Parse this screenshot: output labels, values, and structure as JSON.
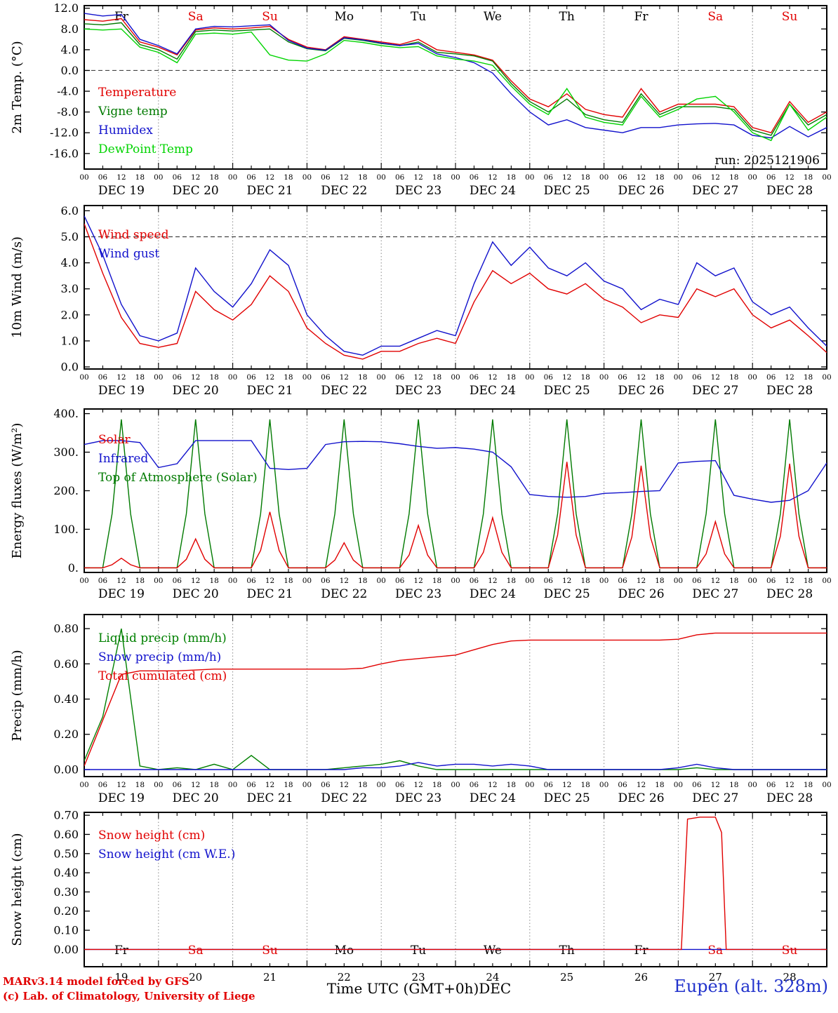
{
  "hour_ticks": [
    "00",
    "06",
    "12",
    "18"
  ],
  "days": [
    {
      "dow": "Fr",
      "dow_color": "#000000",
      "date": "DEC 19",
      "num": "19"
    },
    {
      "dow": "Sa",
      "dow_color": "#e10000",
      "date": "DEC 20",
      "num": "20"
    },
    {
      "dow": "Su",
      "dow_color": "#e10000",
      "date": "DEC 21",
      "num": "21"
    },
    {
      "dow": "Mo",
      "dow_color": "#000000",
      "date": "DEC 22",
      "num": "22"
    },
    {
      "dow": "Tu",
      "dow_color": "#000000",
      "date": "DEC 23",
      "num": "23"
    },
    {
      "dow": "We",
      "dow_color": "#000000",
      "date": "DEC 24",
      "num": "24"
    },
    {
      "dow": "Th",
      "dow_color": "#000000",
      "date": "DEC 25",
      "num": "25"
    },
    {
      "dow": "Fr",
      "dow_color": "#000000",
      "date": "DEC 26",
      "num": "26"
    },
    {
      "dow": "Sa",
      "dow_color": "#e10000",
      "date": "DEC 27",
      "num": "27"
    },
    {
      "dow": "Su",
      "dow_color": "#e10000",
      "date": "DEC 28",
      "num": "28"
    }
  ],
  "footer": {
    "model_credit": "MARv3.14 model forced by GFS",
    "lab_credit": "(c) Lab. of Climatology, University of Liege",
    "xaxis_title": "Time UTC (GMT+0h)DEC",
    "station": "Eupen (alt. 328m)"
  },
  "chart_data": [
    {
      "type": "line",
      "ylabel": "2m Temp. (°C)",
      "ylim": [
        -19,
        12.5
      ],
      "x_unit": "hours_from_dec19_00",
      "x_range": [
        0,
        240
      ],
      "yticks": [
        {
          "v": 12,
          "label": "12.0"
        },
        {
          "v": 8,
          "label": "8.0"
        },
        {
          "v": 4,
          "label": "4.0"
        },
        {
          "v": 0,
          "label": "0.0"
        },
        {
          "v": -4,
          "label": "-4.0"
        },
        {
          "v": -8,
          "label": "-8.0"
        },
        {
          "v": -12,
          "label": "-12.0"
        },
        {
          "v": -16,
          "label": "-16.0"
        }
      ],
      "hlines": [
        0
      ],
      "annotation": "run: 2025121906",
      "legend": [
        {
          "label": "Temperature",
          "color": "#e10000"
        },
        {
          "label": "Vigne temp",
          "color": "#007a00"
        },
        {
          "label": "Humidex",
          "color": "#1111cc"
        },
        {
          "label": "DewPoint Temp",
          "color": "#00d400"
        }
      ],
      "series": [
        {
          "name": "Temperature",
          "color": "#e10000",
          "x_step": 6,
          "values": [
            9.8,
            9.5,
            10.0,
            5.5,
            4.5,
            3.0,
            7.8,
            8.2,
            8.0,
            8.2,
            8.5,
            6.0,
            4.5,
            4.0,
            6.5,
            6.0,
            5.5,
            5.0,
            6.0,
            4.0,
            3.5,
            3.0,
            2.0,
            -2.0,
            -5.5,
            -7.0,
            -4.5,
            -7.5,
            -8.5,
            -9.0,
            -3.5,
            -8.0,
            -6.5,
            -6.5,
            -6.5,
            -7.0,
            -11.0,
            -12.0,
            -6.0,
            -10.0,
            -8.0
          ]
        },
        {
          "name": "Vigne temp",
          "color": "#007a00",
          "x_step": 6,
          "values": [
            9.0,
            8.8,
            9.2,
            5.0,
            4.0,
            2.2,
            7.5,
            7.8,
            7.6,
            7.8,
            8.0,
            5.5,
            4.2,
            3.8,
            6.2,
            5.8,
            5.2,
            4.8,
            5.5,
            3.5,
            3.2,
            2.8,
            1.8,
            -2.5,
            -6.0,
            -8.0,
            -5.5,
            -8.5,
            -9.5,
            -10.0,
            -4.5,
            -8.5,
            -7.0,
            -7.0,
            -7.0,
            -7.5,
            -11.5,
            -12.5,
            -6.5,
            -10.5,
            -8.5
          ]
        },
        {
          "name": "Humidex",
          "color": "#1111cc",
          "x_step": 6,
          "values": [
            11.0,
            10.5,
            10.8,
            6.0,
            4.8,
            3.2,
            8.0,
            8.5,
            8.4,
            8.6,
            8.8,
            5.8,
            4.3,
            3.9,
            6.3,
            5.9,
            5.3,
            4.8,
            5.2,
            3.2,
            2.5,
            1.5,
            -0.5,
            -4.5,
            -8.0,
            -10.5,
            -9.5,
            -11.0,
            -11.5,
            -12.0,
            -11.0,
            -11.0,
            -10.5,
            -10.3,
            -10.2,
            -10.5,
            -12.5,
            -13.0,
            -10.8,
            -12.8,
            -11.0
          ]
        },
        {
          "name": "DewPoint Temp",
          "color": "#00d400",
          "x_step": 6,
          "values": [
            8.0,
            7.8,
            8.0,
            4.5,
            3.5,
            1.5,
            7.0,
            7.2,
            7.0,
            7.4,
            3.0,
            2.0,
            1.8,
            3.2,
            5.8,
            5.4,
            4.8,
            4.4,
            4.6,
            2.8,
            2.2,
            1.8,
            1.0,
            -3.0,
            -6.5,
            -8.5,
            -3.5,
            -9.0,
            -10.0,
            -10.5,
            -5.0,
            -9.0,
            -7.5,
            -5.5,
            -5.0,
            -8.0,
            -12.0,
            -13.5,
            -6.5,
            -11.5,
            -9.0
          ]
        }
      ]
    },
    {
      "type": "line",
      "ylabel": "10m Wind (m/s)",
      "ylim": [
        -0.08,
        6.2
      ],
      "x_range": [
        0,
        240
      ],
      "yticks": [
        {
          "v": 6,
          "label": "6.0"
        },
        {
          "v": 5,
          "label": "5.0"
        },
        {
          "v": 4,
          "label": "4.0"
        },
        {
          "v": 3,
          "label": "3.0"
        },
        {
          "v": 2,
          "label": "2.0"
        },
        {
          "v": 1,
          "label": "1.0"
        },
        {
          "v": 0,
          "label": "0.0"
        }
      ],
      "hlines": [
        5
      ],
      "legend": [
        {
          "label": "Wind speed",
          "color": "#e10000"
        },
        {
          "label": "Wind gust",
          "color": "#1111cc"
        }
      ],
      "series": [
        {
          "name": "Wind gust",
          "color": "#1111cc",
          "x_step": 6,
          "values": [
            5.8,
            4.3,
            2.4,
            1.2,
            1.0,
            1.3,
            3.8,
            2.9,
            2.3,
            3.2,
            4.5,
            3.9,
            2.0,
            1.2,
            0.6,
            0.45,
            0.8,
            0.8,
            1.1,
            1.4,
            1.2,
            3.2,
            4.8,
            3.9,
            4.6,
            3.8,
            3.5,
            4.0,
            3.3,
            3.0,
            2.2,
            2.6,
            2.4,
            4.0,
            3.5,
            3.8,
            2.5,
            2.0,
            2.3,
            1.5,
            0.8
          ]
        },
        {
          "name": "Wind speed",
          "color": "#e10000",
          "x_step": 6,
          "values": [
            5.5,
            3.6,
            1.9,
            0.9,
            0.75,
            0.9,
            2.9,
            2.2,
            1.8,
            2.4,
            3.5,
            2.9,
            1.5,
            0.9,
            0.45,
            0.3,
            0.6,
            0.6,
            0.9,
            1.1,
            0.9,
            2.5,
            3.7,
            3.2,
            3.6,
            3.0,
            2.8,
            3.2,
            2.6,
            2.3,
            1.7,
            2.0,
            1.9,
            3.0,
            2.7,
            3.0,
            2.0,
            1.5,
            1.8,
            1.2,
            0.55
          ]
        }
      ]
    },
    {
      "type": "line",
      "ylabel": "Energy fluxes (W/m²)",
      "ylim": [
        -12,
        412
      ],
      "x_range": [
        0,
        240
      ],
      "yticks": [
        {
          "v": 400,
          "label": "400."
        },
        {
          "v": 300,
          "label": "300."
        },
        {
          "v": 200,
          "label": "200."
        },
        {
          "v": 100,
          "label": "100."
        },
        {
          "v": 0,
          "label": "0."
        }
      ],
      "hlines": [],
      "legend": [
        {
          "label": "Solar",
          "color": "#e10000"
        },
        {
          "label": "Infrared",
          "color": "#1111cc"
        },
        {
          "label": "Top of Atmosphere (Solar)",
          "color": "#007a00"
        }
      ],
      "series": [
        {
          "name": "Top of Atmosphere (Solar)",
          "color": "#007a00",
          "x_step": 3,
          "values": [
            0,
            0,
            0,
            140,
            385,
            140,
            0,
            0,
            0,
            0,
            0,
            140,
            385,
            140,
            0,
            0,
            0,
            0,
            0,
            140,
            385,
            140,
            0,
            0,
            0,
            0,
            0,
            140,
            385,
            140,
            0,
            0,
            0,
            0,
            0,
            140,
            385,
            140,
            0,
            0,
            0,
            0,
            0,
            140,
            385,
            140,
            0,
            0,
            0,
            0,
            0,
            140,
            385,
            140,
            0,
            0,
            0,
            0,
            0,
            140,
            385,
            140,
            0,
            0,
            0,
            0,
            0,
            140,
            385,
            140,
            0,
            0,
            0,
            0,
            0,
            140,
            385,
            140,
            0,
            0,
            0
          ]
        },
        {
          "name": "Infrared",
          "color": "#1111cc",
          "x_step": 6,
          "values": [
            320,
            330,
            330,
            325,
            260,
            270,
            330,
            330,
            330,
            330,
            258,
            255,
            258,
            320,
            327,
            328,
            327,
            322,
            315,
            310,
            312,
            308,
            300,
            262,
            190,
            185,
            183,
            185,
            193,
            195,
            198,
            200,
            272,
            276,
            278,
            188,
            178,
            170,
            175,
            200,
            272
          ]
        },
        {
          "name": "Solar",
          "color": "#e10000",
          "x_step": 3,
          "values": [
            0,
            0,
            0,
            8,
            25,
            8,
            0,
            0,
            0,
            0,
            0,
            22,
            75,
            22,
            0,
            0,
            0,
            0,
            0,
            45,
            145,
            45,
            0,
            0,
            0,
            0,
            0,
            20,
            65,
            20,
            0,
            0,
            0,
            0,
            0,
            33,
            110,
            33,
            0,
            0,
            0,
            0,
            0,
            40,
            130,
            40,
            0,
            0,
            0,
            0,
            0,
            85,
            275,
            85,
            0,
            0,
            0,
            0,
            0,
            80,
            265,
            80,
            0,
            0,
            0,
            0,
            0,
            36,
            120,
            36,
            0,
            0,
            0,
            0,
            0,
            82,
            270,
            82,
            0,
            0,
            0
          ]
        }
      ]
    },
    {
      "type": "line",
      "ylabel": "Precip (mm/h)",
      "ylim": [
        -0.04,
        0.88
      ],
      "x_range": [
        0,
        240
      ],
      "yticks": [
        {
          "v": 0.8,
          "label": "0.80"
        },
        {
          "v": 0.6,
          "label": "0.60"
        },
        {
          "v": 0.4,
          "label": "0.40"
        },
        {
          "v": 0.2,
          "label": "0.20"
        },
        {
          "v": 0.0,
          "label": "0.00"
        }
      ],
      "hlines": [],
      "legend": [
        {
          "label": "Liquid precip (mm/h)",
          "color": "#008000"
        },
        {
          "label": "Snow precip (mm/h)",
          "color": "#1111cc"
        },
        {
          "label": "Total cumulated (cm)",
          "color": "#e10000"
        }
      ],
      "series": [
        {
          "name": "Liquid precip",
          "color": "#008000",
          "x_step": 6,
          "values": [
            0.05,
            0.3,
            0.8,
            0.02,
            0.0,
            0.01,
            0.0,
            0.03,
            0.0,
            0.08,
            0.0,
            0.0,
            0.0,
            0.0,
            0.01,
            0.02,
            0.03,
            0.05,
            0.02,
            0.0,
            0.0,
            0.0,
            0.0,
            0.0,
            0.0,
            0.0,
            0.0,
            0.0,
            0.0,
            0.0,
            0.0,
            0.0,
            0.0,
            0.01,
            0.0,
            0.0,
            0.0,
            0.0,
            0.0,
            0.0,
            0.0
          ]
        },
        {
          "name": "Snow precip",
          "color": "#1111cc",
          "x_step": 6,
          "values": [
            0,
            0,
            0,
            0,
            0,
            0,
            0,
            0,
            0,
            0,
            0,
            0,
            0,
            0,
            0,
            0.01,
            0.01,
            0.02,
            0.04,
            0.02,
            0.03,
            0.03,
            0.02,
            0.03,
            0.02,
            0,
            0,
            0,
            0,
            0,
            0,
            0,
            0.01,
            0.03,
            0.01,
            0,
            0,
            0,
            0,
            0,
            0
          ]
        },
        {
          "name": "Total cumulated",
          "color": "#e10000",
          "x_step": 6,
          "values": [
            0.02,
            0.28,
            0.54,
            0.56,
            0.56,
            0.56,
            0.565,
            0.57,
            0.57,
            0.57,
            0.57,
            0.57,
            0.57,
            0.57,
            0.57,
            0.575,
            0.6,
            0.62,
            0.63,
            0.64,
            0.65,
            0.68,
            0.71,
            0.73,
            0.735,
            0.735,
            0.735,
            0.735,
            0.735,
            0.735,
            0.735,
            0.735,
            0.74,
            0.765,
            0.775,
            0.775,
            0.775,
            0.775,
            0.775,
            0.775,
            0.775
          ]
        }
      ]
    },
    {
      "type": "line",
      "ylabel": "Snow height (cm)",
      "ylim": [
        -0.09,
        0.715
      ],
      "x_range": [
        0,
        240
      ],
      "yticks": [
        {
          "v": 0.7,
          "label": "0.70"
        },
        {
          "v": 0.6,
          "label": "0.60"
        },
        {
          "v": 0.5,
          "label": "0.50"
        },
        {
          "v": 0.4,
          "label": "0.40"
        },
        {
          "v": 0.3,
          "label": "0.30"
        },
        {
          "v": 0.2,
          "label": "0.20"
        },
        {
          "v": 0.1,
          "label": "0.10"
        },
        {
          "v": 0.0,
          "label": "0.00"
        }
      ],
      "hlines": [],
      "legend": [
        {
          "label": "Snow height (cm)",
          "color": "#e10000"
        },
        {
          "label": "Snow height (cm W.E.)",
          "color": "#1111cc"
        }
      ],
      "series": [
        {
          "name": "Snow height WE",
          "color": "#1111cc",
          "x": [
            0,
            240
          ],
          "values": [
            0,
            0
          ]
        },
        {
          "name": "Snow height",
          "color": "#e10000",
          "x": [
            0,
            193,
            195,
            199,
            204,
            206,
            207.5,
            240
          ],
          "values": [
            0,
            0,
            0.68,
            0.69,
            0.69,
            0.61,
            0,
            0
          ]
        }
      ]
    }
  ]
}
